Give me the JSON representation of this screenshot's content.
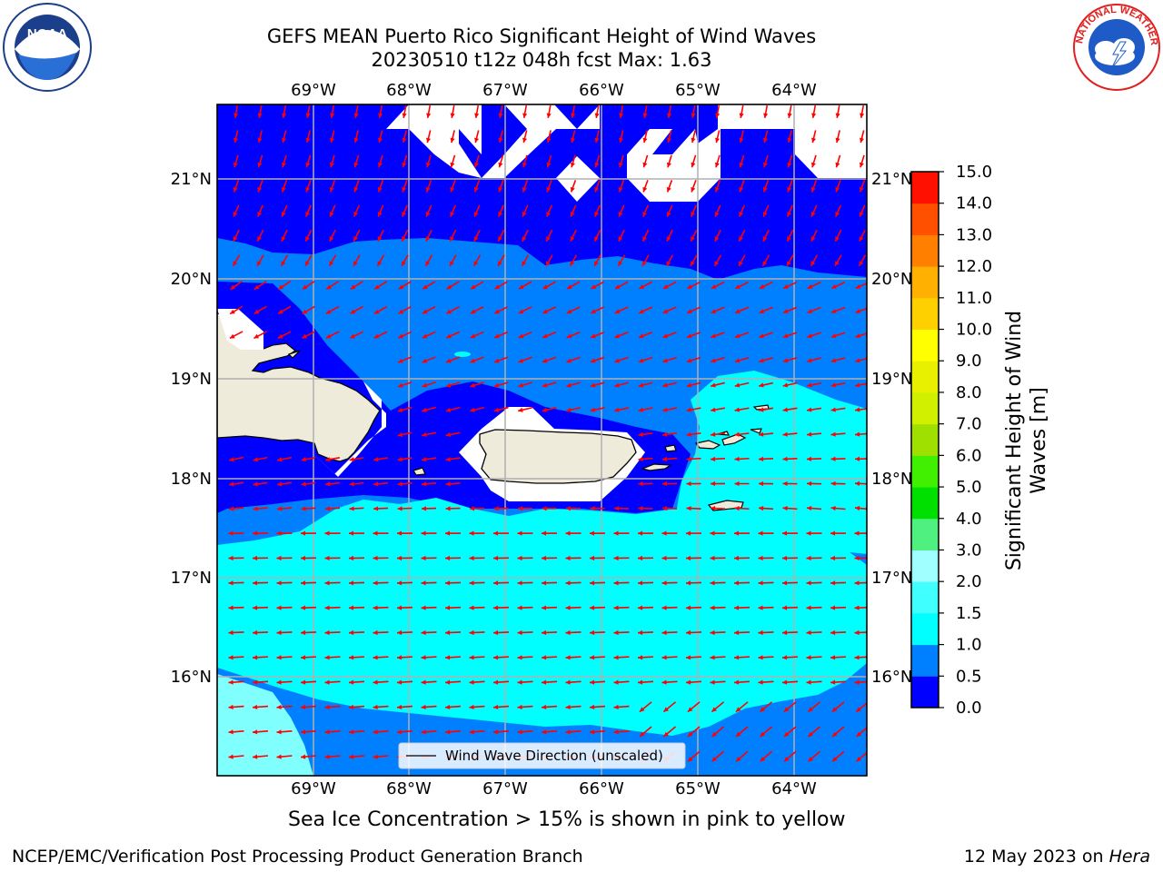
{
  "header": {
    "title_line1": "GEFS MEAN Puerto Rico Significant Height of Wind Waves",
    "title_line2": "20230510 t12z 048h fcst   Max: 1.63"
  },
  "logos": {
    "left": {
      "name": "NOAA",
      "text": "NOAA",
      "ring_text": "NATIONAL OCEANIC AND ATMOSPHERIC ADMINISTRATION · U.S. DEPARTMENT OF COMMERCE"
    },
    "right": {
      "name": "NATIONAL WEATHER SERVICE",
      "ring_text": "NATIONAL WEATHER SERVICE"
    }
  },
  "map": {
    "lon_labels": [
      "69°W",
      "68°W",
      "67°W",
      "66°W",
      "65°W",
      "64°W"
    ],
    "lat_labels": [
      "21°N",
      "20°N",
      "19°N",
      "18°N",
      "17°N",
      "16°N"
    ],
    "legend_label": "Wind Wave Direction (unscaled)",
    "arrow_color": "#ff0000",
    "coast_color": "#000000",
    "land_color": "#eeebdb"
  },
  "colorbar": {
    "label": "Significant Height of Wind Waves [m]",
    "levels": [
      "0.0",
      "0.5",
      "1.0",
      "1.5",
      "2.0",
      "3.0",
      "4.0",
      "5.0",
      "6.0",
      "7.0",
      "8.0",
      "9.0",
      "10.0",
      "11.0",
      "12.0",
      "13.0",
      "14.0",
      "15.0"
    ],
    "colors": [
      "#0000ff",
      "#0080ff",
      "#00ffff",
      "#40ffff",
      "#a0ffff",
      "#50f080",
      "#00e000",
      "#40f000",
      "#a0e000",
      "#d0f000",
      "#e8f000",
      "#ffff00",
      "#ffd000",
      "#ffb000",
      "#ff8000",
      "#ff5000",
      "#ff1000"
    ]
  },
  "subtitle": "Sea Ice Concentration > 15% is shown in pink to yellow",
  "footer": {
    "left": "NCEP/EMC/Verification Post Processing Product Generation Branch",
    "right_prefix": "12 May 2023 on ",
    "right_italic": "Hera"
  }
}
